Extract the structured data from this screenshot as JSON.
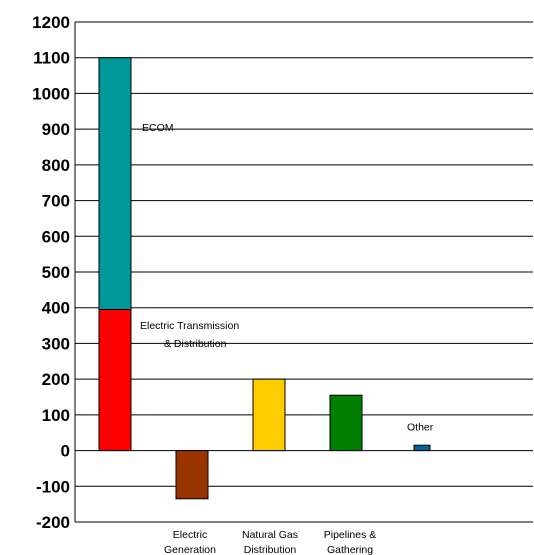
{
  "chart_data": {
    "type": "bar",
    "stacked": true,
    "y_ticks": [
      "1200",
      "1100",
      "1000",
      "900",
      "800",
      "700",
      "600",
      "500",
      "400",
      "300",
      "200",
      "100",
      "0",
      "-100",
      "-200"
    ],
    "ylim": [
      -200,
      1200
    ],
    "grid": true,
    "categories": [
      {
        "line1": "",
        "line2": ""
      },
      {
        "line1": "Electric",
        "line2": "Generation"
      },
      {
        "line1": "Natural Gas",
        "line2": "Distribution"
      },
      {
        "line1": "Pipelines &",
        "line2": "Gathering"
      },
      {
        "line1": "",
        "line2": ""
      }
    ],
    "segments": [
      {
        "category": 0,
        "start": 0,
        "end": 395,
        "color": "#ff0000",
        "label_line1": "Electric Transmission",
        "label_line2": "& Distribution"
      },
      {
        "category": 0,
        "start": 395,
        "end": 1100,
        "color": "#009999",
        "label_line1": "ECOM",
        "label_line2": ""
      },
      {
        "category": 1,
        "start": -135,
        "end": 0,
        "color": "#993300",
        "label_line1": "",
        "label_line2": ""
      },
      {
        "category": 2,
        "start": 0,
        "end": 200,
        "color": "#ffcc00",
        "label_line1": "",
        "label_line2": ""
      },
      {
        "category": 3,
        "start": 0,
        "end": 155,
        "color": "#008000",
        "label_line1": "",
        "label_line2": ""
      },
      {
        "category": 4,
        "start": 0,
        "end": 15,
        "color": "#006699",
        "label_line1": "Other",
        "label_line2": ""
      }
    ]
  }
}
